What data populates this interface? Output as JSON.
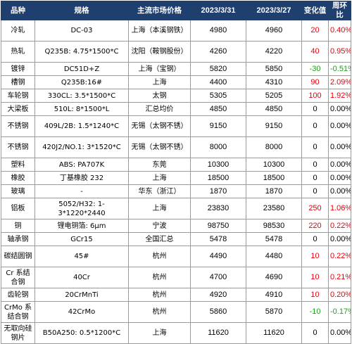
{
  "headers": [
    "品种",
    "规格",
    "主流市场价格",
    "2023/3/31",
    "2023/3/27",
    "变化值",
    "周环比"
  ],
  "colors": {
    "header_bg": "#1f3f6e",
    "up": "#e8000b",
    "down": "#17a317"
  },
  "rows": [
    {
      "variety": "冷轧",
      "spec": "DC-03",
      "market": "上海（本溪钢铁）",
      "p1": "4980",
      "p2": "4960",
      "change": "20",
      "pct": "0.40%",
      "dir": "up",
      "tall": true
    },
    {
      "variety": "热轧",
      "spec": "Q235B: 4.75*1500*C",
      "market": "沈阳（鞍钢股份）",
      "p1": "4260",
      "p2": "4220",
      "change": "40",
      "pct": "0.95%",
      "dir": "up",
      "tall": true
    },
    {
      "variety": "镀锌",
      "spec": "DC51D+Z",
      "market": "上海（宝钢）",
      "p1": "5820",
      "p2": "5850",
      "change": "-30",
      "pct": "-0.51%",
      "dir": "down",
      "tall": false
    },
    {
      "variety": "槽钢",
      "spec": "Q235B:16#",
      "market": "上海",
      "p1": "4400",
      "p2": "4310",
      "change": "90",
      "pct": "2.09%",
      "dir": "up",
      "tall": false
    },
    {
      "variety": "车轮钢",
      "spec": "330CL: 3.5*1500*C",
      "market": "太钢",
      "p1": "5305",
      "p2": "5205",
      "change": "100",
      "pct": "1.92%",
      "dir": "up",
      "tall": false
    },
    {
      "variety": "大梁板",
      "spec": "510L: 8*1500*L",
      "market": "汇总均价",
      "p1": "4850",
      "p2": "4850",
      "change": "0",
      "pct": "0.00%",
      "dir": "flat",
      "tall": false
    },
    {
      "variety": "不锈钢",
      "spec": "409L/2B: 1.5*1240*C",
      "market": "无锡（太钢不锈）",
      "p1": "9150",
      "p2": "9150",
      "change": "0",
      "pct": "0.00%",
      "dir": "flat",
      "tall": true
    },
    {
      "variety": "不锈钢",
      "spec": "420J2/NO.1: 3*1520*C",
      "market": "无锡（太钢不锈）",
      "p1": "8000",
      "p2": "8000",
      "change": "0",
      "pct": "0.00%",
      "dir": "flat",
      "tall": true
    },
    {
      "variety": "塑料",
      "spec": "ABS: PA707K",
      "market": "东莞",
      "p1": "10300",
      "p2": "10300",
      "change": "0",
      "pct": "0.00%",
      "dir": "flat",
      "tall": false
    },
    {
      "variety": "橡胶",
      "spec": "丁基橡胶 232",
      "market": "上海",
      "p1": "18500",
      "p2": "18500",
      "change": "0",
      "pct": "0.00%",
      "dir": "flat",
      "tall": false
    },
    {
      "variety": "玻璃",
      "spec": "-",
      "market": "华东（浙江）",
      "p1": "1870",
      "p2": "1870",
      "change": "0",
      "pct": "0.00%",
      "dir": "flat",
      "tall": false
    },
    {
      "variety": "铝板",
      "spec": "5052/H32: 1-3*1220*2440",
      "market": "上海",
      "p1": "23830",
      "p2": "23580",
      "change": "250",
      "pct": "1.06%",
      "dir": "up",
      "tall": true
    },
    {
      "variety": "铜",
      "spec": "锂电铜箔: 6μm",
      "market": "宁波",
      "p1": "98750",
      "p2": "98530",
      "change": "220",
      "pct": "0.22%",
      "dir": "up",
      "tall": false
    },
    {
      "variety": "轴承钢",
      "spec": "GCr15",
      "market": "全国汇总",
      "p1": "5478",
      "p2": "5478",
      "change": "0",
      "pct": "0.00%",
      "dir": "flat",
      "tall": false
    },
    {
      "variety": "碳结圆钢",
      "spec": "45#",
      "market": "杭州",
      "p1": "4490",
      "p2": "4480",
      "change": "10",
      "pct": "0.22%",
      "dir": "up",
      "tall": true
    },
    {
      "variety": "Cr 系结合钢",
      "spec": "40Cr",
      "market": "杭州",
      "p1": "4700",
      "p2": "4690",
      "change": "10",
      "pct": "0.21%",
      "dir": "up",
      "tall": true
    },
    {
      "variety": "齿轮钢",
      "spec": "20CrMnTi",
      "market": "杭州",
      "p1": "4920",
      "p2": "4910",
      "change": "10",
      "pct": "0.20%",
      "dir": "up",
      "tall": false
    },
    {
      "variety": "CrMo 系结合钢",
      "spec": "42CrMo",
      "market": "杭州",
      "p1": "5860",
      "p2": "5870",
      "change": "-10",
      "pct": "-0.17%",
      "dir": "down",
      "tall": true
    },
    {
      "variety": "无取向硅钢片",
      "spec": "B50A250: 0.5*1200*C",
      "market": "上海",
      "p1": "11620",
      "p2": "11620",
      "change": "0",
      "pct": "0.00%",
      "dir": "flat",
      "tall": true
    }
  ]
}
